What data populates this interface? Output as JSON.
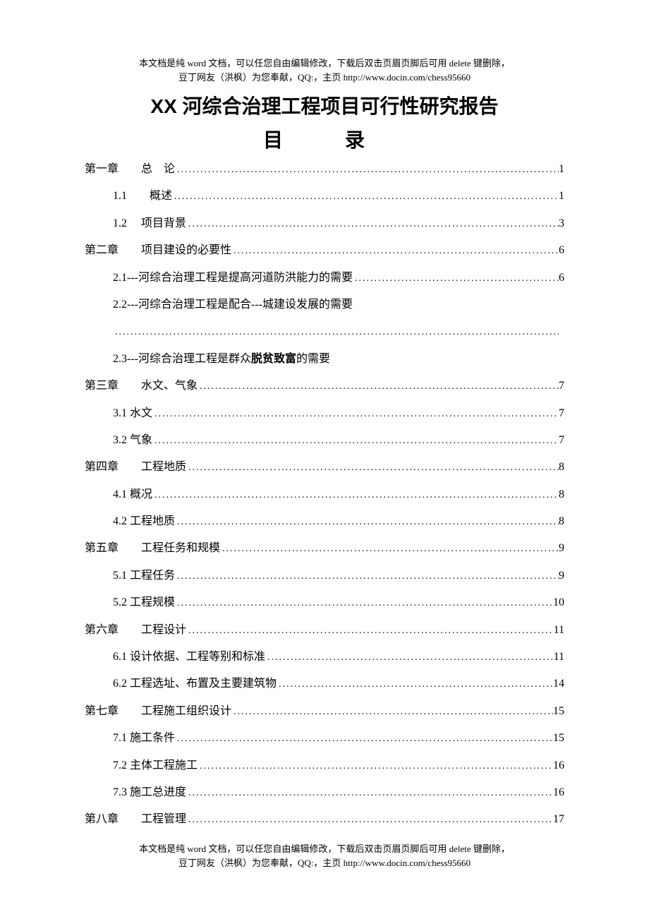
{
  "header_note_line1": "本文档是纯 word 文档，可以任您自由编辑修改，下载后双击页眉页脚后可用 delete 键删除，",
  "header_note_line2": "豆丁网友（洪枫）为您奉献，QQ:，主页 http://www.docin.com/chess95660",
  "main_title": "XX 河综合治理工程项目可行性研究报告",
  "toc_title": "目　录",
  "toc": [
    {
      "level": 1,
      "label": "第一章　　总　论",
      "page": "1"
    },
    {
      "level": 2,
      "label": "1.1　　概述",
      "page": "1"
    },
    {
      "level": 2,
      "label": "1.2　 项目背景",
      "page": "3"
    },
    {
      "level": 1,
      "label": "第二章　　项目建设的必要性",
      "page": "6"
    },
    {
      "level": 2,
      "label": "2.1---河综合治理工程是提高河道防洪能力的需要",
      "page": "6"
    },
    {
      "level": 2,
      "label": "2.2---河综合治理工程是配合---城建设发展的需要",
      "nopage": true
    },
    {
      "dotsOnly": true,
      "page": ""
    },
    {
      "level": 2,
      "label_pre": "2.3---河综合治理工程是群众",
      "label_bold": "脱贫致富",
      "label_post": "的需要",
      "nopage": true,
      "composite": true
    },
    {
      "level": 1,
      "label": "第三章　　水文、气象",
      "page": "7"
    },
    {
      "level": 2,
      "label": "3.1 水文",
      "page": "7"
    },
    {
      "level": 2,
      "label": "3.2 气象",
      "page": "7"
    },
    {
      "level": 1,
      "label": "第四章　　工程地质",
      "page": "8"
    },
    {
      "level": 2,
      "label": "4.1  概况",
      "page": "8"
    },
    {
      "level": 2,
      "label": "4.2 工程地质",
      "page": "8"
    },
    {
      "level": 1,
      "label": "第五章　　工程任务和规模",
      "page": "9"
    },
    {
      "level": 2,
      "label": "5.1 工程任务",
      "page": "9"
    },
    {
      "level": 2,
      "label": "5.2 工程规模",
      "page": "10"
    },
    {
      "level": 1,
      "label": "第六章　　工程设计",
      "page": "11"
    },
    {
      "level": 2,
      "label": "6.1 设计依据、工程等别和标准",
      "page": "11"
    },
    {
      "level": 2,
      "label": "6.2 工程选址、布置及主要建筑物",
      "page": "14"
    },
    {
      "level": 1,
      "label": "第七章　　工程施工组织设计",
      "page": "15"
    },
    {
      "level": 2,
      "label": "7.1 施工条件",
      "page": "15"
    },
    {
      "level": 2,
      "label": "7.2 主体工程施工",
      "page": "16"
    },
    {
      "level": 2,
      "label": "7.3 施工总进度",
      "page": "16"
    },
    {
      "level": 1,
      "label": "第八章　　工程管理",
      "page": "17"
    }
  ],
  "footer_note_line1": "本文档是纯 word 文档，可以任您自由编辑修改，下载后双击页眉页脚后可用 delete 键删除，",
  "footer_note_line2": "豆丁网友（洪枫）为您奉献，QQ:，主页 http://www.docin.com/chess95660"
}
